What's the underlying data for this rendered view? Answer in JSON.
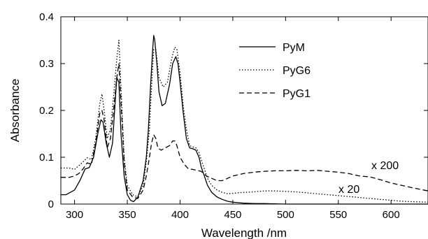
{
  "chart_data": {
    "type": "line",
    "xlabel": "Wavelength /nm",
    "ylabel": "Absorbance",
    "xlim": [
      287,
      635
    ],
    "ylim": [
      0,
      0.4
    ],
    "xticks": [
      300,
      350,
      400,
      450,
      500,
      550,
      600
    ],
    "yticks": [
      0,
      0.1,
      0.2,
      0.3,
      0.4
    ],
    "xtick_labels": [
      "300",
      "350",
      "400",
      "450",
      "500",
      "550",
      "600"
    ],
    "ytick_labels": [
      "0",
      "0.1",
      "0.2",
      "0.3",
      "0.4"
    ],
    "grid": false,
    "legend_position": "top-right",
    "series": [
      {
        "name": "PyM",
        "style": "solid",
        "color": "#000000",
        "x": [
          287,
          292,
          300,
          305,
          310,
          314,
          318,
          322,
          325,
          327,
          330,
          333,
          336,
          338,
          340,
          342,
          344,
          347,
          350,
          353,
          356,
          360,
          365,
          368,
          370,
          372,
          374,
          375,
          376,
          378,
          380,
          383,
          386,
          390,
          393,
          396,
          398,
          400,
          403,
          406,
          409,
          412,
          415,
          418,
          420,
          423,
          426,
          430,
          435,
          440,
          445,
          450,
          455,
          460,
          470,
          480,
          500,
          520,
          550,
          600,
          635
        ],
        "y": [
          0.02,
          0.02,
          0.03,
          0.05,
          0.075,
          0.078,
          0.1,
          0.15,
          0.18,
          0.175,
          0.13,
          0.1,
          0.13,
          0.2,
          0.27,
          0.26,
          0.15,
          0.06,
          0.02,
          0.008,
          0.005,
          0.015,
          0.05,
          0.1,
          0.16,
          0.25,
          0.33,
          0.36,
          0.35,
          0.3,
          0.24,
          0.21,
          0.215,
          0.255,
          0.3,
          0.315,
          0.3,
          0.26,
          0.195,
          0.14,
          0.12,
          0.118,
          0.115,
          0.1,
          0.08,
          0.06,
          0.04,
          0.025,
          0.015,
          0.01,
          0.006,
          0.004,
          0.003,
          0.002,
          0.001,
          0.001,
          0.0,
          0.0,
          0.0,
          0.0,
          0.0
        ]
      },
      {
        "name": "PyG6",
        "style": "dotted",
        "color": "#000000",
        "x": [
          287,
          295,
          300,
          304,
          308,
          312,
          316,
          320,
          324,
          326,
          328,
          331,
          334,
          337,
          340,
          342,
          344,
          347,
          350,
          355,
          360,
          365,
          368,
          371,
          373,
          375,
          377,
          380,
          384,
          388,
          392,
          395,
          397,
          400,
          403,
          406,
          409,
          412,
          415,
          418,
          420,
          423,
          426,
          430,
          435,
          440,
          445,
          450,
          455,
          460,
          470,
          480,
          490,
          500,
          510,
          520,
          530,
          540,
          550,
          560,
          570,
          580,
          590,
          600,
          610,
          620,
          635
        ],
        "y": [
          0.077,
          0.077,
          0.074,
          0.082,
          0.09,
          0.099,
          0.095,
          0.14,
          0.215,
          0.235,
          0.2,
          0.14,
          0.16,
          0.23,
          0.31,
          0.35,
          0.25,
          0.1,
          0.04,
          0.02,
          0.015,
          0.04,
          0.09,
          0.16,
          0.25,
          0.33,
          0.33,
          0.27,
          0.25,
          0.26,
          0.31,
          0.335,
          0.33,
          0.28,
          0.21,
          0.16,
          0.125,
          0.122,
          0.12,
          0.11,
          0.095,
          0.075,
          0.055,
          0.04,
          0.03,
          0.025,
          0.022,
          0.023,
          0.024,
          0.025,
          0.026,
          0.028,
          0.028,
          0.027,
          0.026,
          0.024,
          0.022,
          0.02,
          0.018,
          0.016,
          0.014,
          0.012,
          0.01,
          0.008,
          0.006,
          0.005,
          0.004
        ]
      },
      {
        "name": "PyG1",
        "style": "dashed",
        "color": "#000000",
        "x": [
          287,
          295,
          300,
          304,
          308,
          312,
          316,
          320,
          324,
          326,
          328,
          331,
          334,
          337,
          340,
          342,
          344,
          347,
          350,
          355,
          360,
          365,
          368,
          371,
          373,
          375,
          377,
          379,
          382,
          386,
          390,
          393,
          395,
          397,
          400,
          404,
          408,
          412,
          416,
          420,
          425,
          430,
          435,
          440,
          445,
          450,
          460,
          470,
          480,
          490,
          500,
          510,
          520,
          530,
          540,
          550,
          560,
          570,
          580,
          590,
          600,
          610,
          620,
          635
        ],
        "y": [
          0.057,
          0.057,
          0.06,
          0.065,
          0.075,
          0.088,
          0.085,
          0.13,
          0.195,
          0.2,
          0.18,
          0.12,
          0.14,
          0.2,
          0.27,
          0.3,
          0.22,
          0.09,
          0.03,
          0.015,
          0.012,
          0.03,
          0.06,
          0.1,
          0.13,
          0.148,
          0.14,
          0.12,
          0.115,
          0.12,
          0.125,
          0.135,
          0.135,
          0.125,
          0.1,
          0.085,
          0.075,
          0.074,
          0.072,
          0.07,
          0.06,
          0.055,
          0.05,
          0.05,
          0.055,
          0.06,
          0.065,
          0.068,
          0.07,
          0.071,
          0.071,
          0.072,
          0.071,
          0.072,
          0.07,
          0.068,
          0.065,
          0.06,
          0.058,
          0.052,
          0.045,
          0.04,
          0.035,
          0.028
        ]
      }
    ],
    "annotations": [
      {
        "text": "x 200",
        "x": 588,
        "y": 0.07
      },
      {
        "text": "x 20",
        "x": 578,
        "y": 0.026
      }
    ]
  }
}
